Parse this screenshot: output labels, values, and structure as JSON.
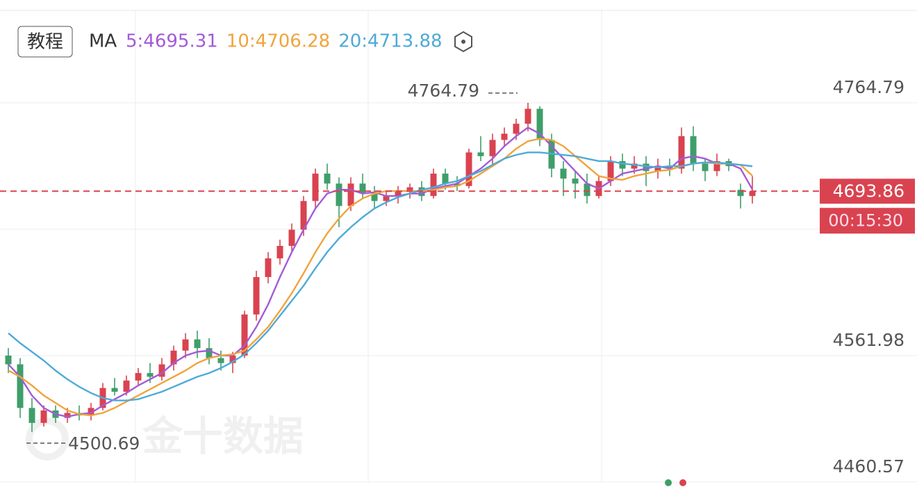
{
  "toolbar": {
    "button": "教程",
    "indicator": "MA"
  },
  "watermark": "金十数据",
  "chart_data": {
    "type": "candlestick",
    "up_color": "#d9434f",
    "down_color": "#3f9e6a",
    "ylim": [
      4460.57,
      4838.9
    ],
    "yticks": [
      4764.79,
      4561.98,
      4460.57
    ],
    "max_label": 4764.79,
    "min_label": 4500.69,
    "last_price": 4693.86,
    "countdown": "00:15:30",
    "ohlc": [
      [
        4562,
        4568,
        4548,
        4555
      ],
      [
        4555,
        4560,
        4512,
        4520
      ],
      [
        4520,
        4528,
        4500.69,
        4508
      ],
      [
        4508,
        4522,
        4505,
        4518
      ],
      [
        4518,
        4522,
        4508,
        4512
      ],
      [
        4512,
        4520,
        4508,
        4516
      ],
      [
        4516,
        4522,
        4510,
        4514
      ],
      [
        4514,
        4524,
        4510,
        4520
      ],
      [
        4520,
        4540,
        4518,
        4536
      ],
      [
        4536,
        4544,
        4530,
        4533
      ],
      [
        4533,
        4546,
        4530,
        4542
      ],
      [
        4542,
        4552,
        4538,
        4548
      ],
      [
        4548,
        4556,
        4540,
        4545
      ],
      [
        4545,
        4560,
        4542,
        4555
      ],
      [
        4555,
        4570,
        4550,
        4566
      ],
      [
        4566,
        4580,
        4560,
        4575
      ],
      [
        4575,
        4582,
        4560,
        4568
      ],
      [
        4568,
        4576,
        4555,
        4560
      ],
      [
        4560,
        4566,
        4550,
        4556
      ],
      [
        4556,
        4565,
        4548,
        4562
      ],
      [
        4562,
        4598,
        4560,
        4595
      ],
      [
        4595,
        4630,
        4590,
        4625
      ],
      [
        4625,
        4645,
        4620,
        4640
      ],
      [
        4640,
        4655,
        4635,
        4650
      ],
      [
        4650,
        4668,
        4645,
        4663
      ],
      [
        4663,
        4690,
        4658,
        4686
      ],
      [
        4686,
        4712,
        4680,
        4708
      ],
      [
        4708,
        4716,
        4695,
        4700
      ],
      [
        4700,
        4705,
        4665,
        4682
      ],
      [
        4682,
        4705,
        4678,
        4700
      ],
      [
        4700,
        4708,
        4688,
        4692
      ],
      [
        4692,
        4698,
        4680,
        4686
      ],
      [
        4686,
        4694,
        4682,
        4690
      ],
      [
        4690,
        4698,
        4684,
        4694
      ],
      [
        4694,
        4700,
        4688,
        4697
      ],
      [
        4697,
        4702,
        4686,
        4690
      ],
      [
        4690,
        4712,
        4688,
        4708
      ],
      [
        4708,
        4712,
        4695,
        4700
      ],
      [
        4700,
        4706,
        4694,
        4698
      ],
      [
        4698,
        4728,
        4696,
        4725
      ],
      [
        4725,
        4738,
        4718,
        4722
      ],
      [
        4722,
        4740,
        4715,
        4735
      ],
      [
        4735,
        4745,
        4730,
        4740
      ],
      [
        4740,
        4752,
        4735,
        4748
      ],
      [
        4748,
        4764.79,
        4742,
        4760
      ],
      [
        4760,
        4762,
        4730,
        4735
      ],
      [
        4735,
        4740,
        4705,
        4712
      ],
      [
        4712,
        4718,
        4690,
        4704
      ],
      [
        4704,
        4710,
        4688,
        4700
      ],
      [
        4700,
        4708,
        4684,
        4690
      ],
      [
        4690,
        4706,
        4688,
        4702
      ],
      [
        4702,
        4722,
        4698,
        4718
      ],
      [
        4718,
        4724,
        4706,
        4712
      ],
      [
        4712,
        4722,
        4708,
        4716
      ],
      [
        4716,
        4722,
        4698,
        4710
      ],
      [
        4710,
        4720,
        4704,
        4714
      ],
      [
        4714,
        4720,
        4706,
        4712
      ],
      [
        4712,
        4745,
        4708,
        4738
      ],
      [
        4738,
        4746,
        4710,
        4716
      ],
      [
        4716,
        4720,
        4702,
        4710
      ],
      [
        4710,
        4724,
        4706,
        4718
      ],
      [
        4718,
        4720,
        4710,
        4714
      ],
      [
        4695,
        4700,
        4680,
        4690
      ],
      [
        4690,
        4706,
        4684,
        4693.86
      ]
    ],
    "series": [
      {
        "name": "5:4695.31",
        "color": "#a45ad6",
        "values": [
          4555,
          4545,
          4530,
          4520,
          4515,
          4513,
          4515,
          4516,
          4522,
          4527,
          4532,
          4538,
          4543,
          4548,
          4556,
          4562,
          4565,
          4566,
          4562,
          4562,
          4570,
          4585,
          4603,
          4625,
          4645,
          4663,
          4680,
          4692,
          4695,
          4695,
          4692,
          4693,
          4690,
          4690,
          4692,
          4692,
          4696,
          4698,
          4700,
          4706,
          4712,
          4720,
          4730,
          4738,
          4745,
          4740,
          4730,
          4720,
          4710,
          4700,
          4696,
          4702,
          4708,
          4710,
          4712,
          4714,
          4712,
          4720,
          4722,
          4720,
          4716,
          4716,
          4712,
          4695.31
        ]
      },
      {
        "name": "10:4706.28",
        "color": "#f0a43c",
        "values": [
          4550,
          4545,
          4538,
          4530,
          4524,
          4518,
          4515,
          4514,
          4516,
          4520,
          4525,
          4530,
          4535,
          4540,
          4545,
          4550,
          4556,
          4560,
          4562,
          4563,
          4566,
          4575,
          4585,
          4598,
          4612,
          4628,
          4645,
          4660,
          4672,
          4682,
          4688,
          4692,
          4694,
          4694,
          4694,
          4694,
          4695,
          4697,
          4698,
          4702,
          4708,
          4714,
          4720,
          4728,
          4734,
          4736,
          4735,
          4730,
          4722,
          4714,
          4706,
          4704,
          4703,
          4706,
          4708,
          4710,
          4711,
          4714,
          4716,
          4717,
          4716,
          4716,
          4715,
          4706.28
        ]
      },
      {
        "name": "20:4713.88",
        "color": "#4eaad8",
        "values": [
          4580,
          4572,
          4565,
          4558,
          4550,
          4543,
          4537,
          4532,
          4528,
          4526,
          4526,
          4527,
          4530,
          4533,
          4537,
          4541,
          4545,
          4548,
          4552,
          4557,
          4563,
          4572,
          4582,
          4594,
          4606,
          4618,
          4632,
          4645,
          4656,
          4665,
          4673,
          4680,
          4685,
          4689,
          4692,
          4695,
          4697,
          4700,
          4702,
          4706,
          4710,
          4715,
          4720,
          4723,
          4725,
          4725,
          4724,
          4723,
          4722,
          4720,
          4718,
          4718,
          4716,
          4715,
          4714,
          4713,
          4714,
          4714,
          4716,
          4717,
          4717,
          4716,
          4715,
          4713.88
        ]
      }
    ]
  }
}
